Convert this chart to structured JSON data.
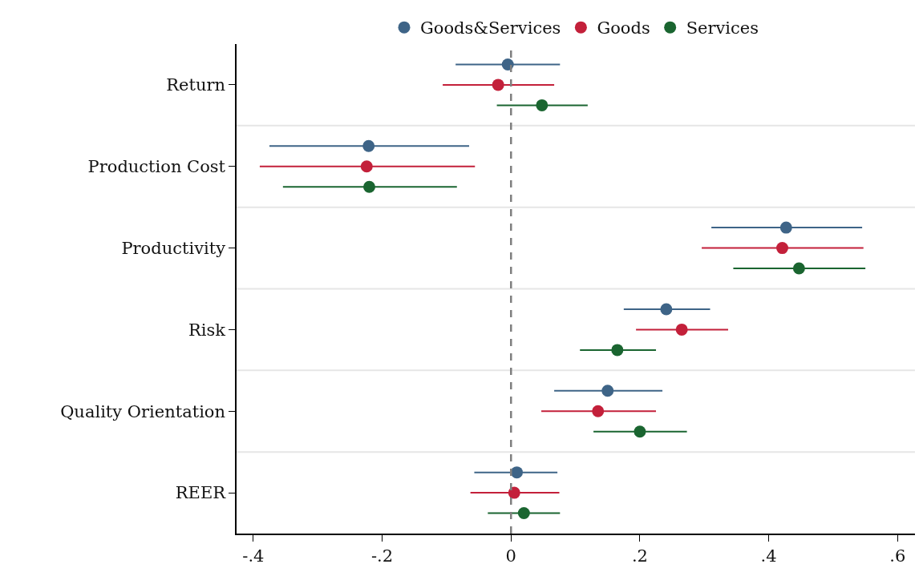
{
  "chart_data": {
    "type": "scatter",
    "orientation": "horizontal",
    "categories": [
      "Return",
      "Production Cost",
      "Productivity",
      "Risk",
      "Quality Orientation",
      "REER"
    ],
    "series": [
      {
        "name": "Goods&Services",
        "color": "#3e6487",
        "values": [
          -0.005,
          -0.221,
          0.427,
          0.241,
          0.15,
          0.009
        ],
        "errors": [
          [
            -0.086,
            0.076
          ],
          [
            -0.375,
            -0.065
          ],
          [
            0.311,
            0.545
          ],
          [
            0.175,
            0.309
          ],
          [
            0.067,
            0.235
          ],
          [
            -0.057,
            0.072
          ]
        ]
      },
      {
        "name": "Goods",
        "color": "#c3203a",
        "values": [
          -0.02,
          -0.224,
          0.421,
          0.265,
          0.135,
          0.005
        ],
        "errors": [
          [
            -0.106,
            0.067
          ],
          [
            -0.39,
            -0.056
          ],
          [
            0.296,
            0.547
          ],
          [
            0.194,
            0.337
          ],
          [
            0.047,
            0.225
          ],
          [
            -0.063,
            0.075
          ]
        ]
      },
      {
        "name": "Services",
        "color": "#1a6530",
        "values": [
          0.048,
          -0.22,
          0.447,
          0.165,
          0.2,
          0.02
        ],
        "errors": [
          [
            -0.022,
            0.119
          ],
          [
            -0.354,
            -0.084
          ],
          [
            0.345,
            0.55
          ],
          [
            0.107,
            0.225
          ],
          [
            0.128,
            0.273
          ],
          [
            -0.036,
            0.076
          ]
        ]
      }
    ],
    "xlim": [
      -0.426,
      0.627
    ],
    "xticks": [
      {
        "value": -0.4,
        "label": "-.4"
      },
      {
        "value": -0.2,
        "label": "-.2"
      },
      {
        "value": 0,
        "label": "0"
      },
      {
        "value": 0.2,
        "label": ".2"
      },
      {
        "value": 0.4,
        "label": ".4"
      },
      {
        "value": 0.6,
        "label": ".6"
      }
    ],
    "ref_lines": [
      {
        "axis": "x",
        "value": 0,
        "color": "#808080",
        "line_style": "dashed"
      }
    ],
    "grid": "y",
    "legend": "top",
    "marker": "circle"
  }
}
